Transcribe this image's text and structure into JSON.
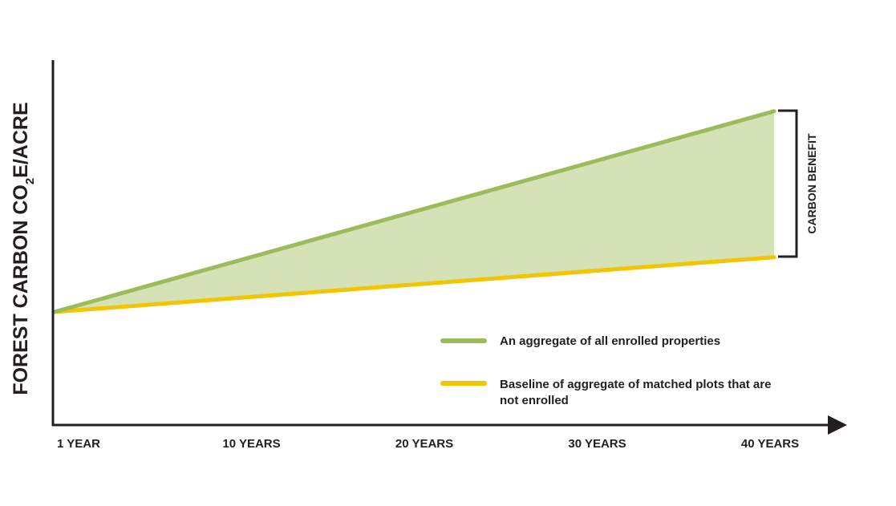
{
  "chart_data": {
    "type": "area",
    "title": "",
    "xlabel": "",
    "ylabel": "FOREST CARBON CO",
    "ylabel_subscript": "2",
    "ylabel_suffix": "E/ACRE",
    "x_tick_labels": [
      "1 YEAR",
      "10 YEARS",
      "20 YEARS",
      "30 YEARS",
      "40 YEARS"
    ],
    "xlim": [
      1,
      40
    ],
    "ylim": [
      0,
      100
    ],
    "y_units": "relative (no numeric scale shown)",
    "grid": false,
    "series": [
      {
        "name": "An aggregate of all enrolled properties",
        "color": "#9cbb5a",
        "x": [
          1,
          40
        ],
        "y": [
          31,
          86
        ]
      },
      {
        "name": "Baseline of aggregate of matched plots that are not enrolled",
        "color": "#f2c500",
        "x": [
          1,
          40
        ],
        "y": [
          31,
          46
        ]
      }
    ],
    "fill_between_color": "#d5e2b5",
    "annotation": "CARBON BENEFIT",
    "legend": {
      "placement": "bottom-right",
      "items": [
        {
          "label": "An aggregate of all enrolled properties",
          "color": "#9cbb5a"
        },
        {
          "label_lines": [
            "Baseline of aggregate of matched plots that are",
            "not enrolled"
          ],
          "color": "#f2c500"
        }
      ]
    }
  }
}
